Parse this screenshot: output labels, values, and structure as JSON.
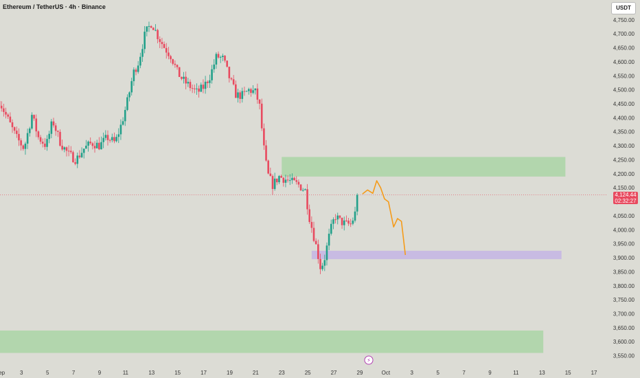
{
  "header": {
    "symbol_line": "Ethereum / TetherUS · 4h · Binance"
  },
  "currency_button": "USDT",
  "price_tag": {
    "price": "4,124.44",
    "countdown": "02:32:27"
  },
  "colors": {
    "up": "#22a08a",
    "down": "#e84a5f",
    "zone_green": "#a8d5a2",
    "zone_purple": "#c3b3e6",
    "projection": "#f59b1a",
    "axis_text": "#333333",
    "background": "#dcdcd5"
  },
  "chart_data": {
    "type": "candlestick",
    "ylim": [
      3525,
      4780
    ],
    "y_ticks": [
      3550,
      3600,
      3650,
      3700,
      3750,
      3800,
      3850,
      3900,
      3950,
      4000,
      4050,
      4100,
      4150,
      4200,
      4250,
      4300,
      4350,
      4400,
      4450,
      4500,
      4550,
      4600,
      4650,
      4700,
      4750
    ],
    "y_tick_labels": [
      "3,550.00",
      "3,600.00",
      "3,650.00",
      "3,700.00",
      "3,750.00",
      "3,800.00",
      "3,850.00",
      "3,900.00",
      "3,950.00",
      "4,000.00",
      "4,050.00",
      "4,100.00",
      "4,150.00",
      "4,200.00",
      "4,250.00",
      "4,300.00",
      "4,350.00",
      "4,400.00",
      "4,450.00",
      "4,500.00",
      "4,550.00",
      "4,600.00",
      "4,650.00",
      "4,700.00",
      "4,750.00"
    ],
    "x_range_days": [
      1.35,
      48.2
    ],
    "x_ticks": [
      {
        "day": 1.35,
        "label": "Sep"
      },
      {
        "day": 3,
        "label": "3"
      },
      {
        "day": 5,
        "label": "5"
      },
      {
        "day": 7,
        "label": "7"
      },
      {
        "day": 9,
        "label": "9"
      },
      {
        "day": 11,
        "label": "11"
      },
      {
        "day": 13,
        "label": "13"
      },
      {
        "day": 15,
        "label": "15"
      },
      {
        "day": 17,
        "label": "17"
      },
      {
        "day": 19,
        "label": "19"
      },
      {
        "day": 21,
        "label": "21"
      },
      {
        "day": 23,
        "label": "23"
      },
      {
        "day": 25,
        "label": "25"
      },
      {
        "day": 27,
        "label": "27"
      },
      {
        "day": 29,
        "label": "29"
      },
      {
        "day": 31,
        "label": "Oct"
      },
      {
        "day": 33,
        "label": "3"
      },
      {
        "day": 35,
        "label": "5"
      },
      {
        "day": 37,
        "label": "7"
      },
      {
        "day": 39,
        "label": "9"
      },
      {
        "day": 41,
        "label": "11"
      },
      {
        "day": 43,
        "label": "13"
      },
      {
        "day": 45,
        "label": "15"
      },
      {
        "day": 47,
        "label": "17"
      }
    ],
    "current_price": 4124.44,
    "close_path": [
      [
        1.3,
        4460
      ],
      [
        2.0,
        4390
      ],
      [
        2.6,
        4330
      ],
      [
        3.2,
        4290
      ],
      [
        3.8,
        4410
      ],
      [
        4.3,
        4330
      ],
      [
        4.9,
        4300
      ],
      [
        5.4,
        4390
      ],
      [
        6.0,
        4310
      ],
      [
        6.6,
        4270
      ],
      [
        7.2,
        4250
      ],
      [
        7.8,
        4290
      ],
      [
        8.4,
        4310
      ],
      [
        9.0,
        4300
      ],
      [
        9.6,
        4330
      ],
      [
        10.2,
        4310
      ],
      [
        10.7,
        4380
      ],
      [
        11.2,
        4470
      ],
      [
        11.6,
        4560
      ],
      [
        12.0,
        4600
      ],
      [
        12.5,
        4700
      ],
      [
        13.0,
        4740
      ],
      [
        13.5,
        4690
      ],
      [
        14.0,
        4650
      ],
      [
        14.5,
        4620
      ],
      [
        15.0,
        4560
      ],
      [
        15.5,
        4530
      ],
      [
        16.0,
        4510
      ],
      [
        16.5,
        4490
      ],
      [
        17.0,
        4510
      ],
      [
        17.5,
        4550
      ],
      [
        18.0,
        4620
      ],
      [
        18.5,
        4610
      ],
      [
        19.0,
        4540
      ],
      [
        19.5,
        4480
      ],
      [
        20.0,
        4480
      ],
      [
        20.5,
        4500
      ],
      [
        21.0,
        4490
      ],
      [
        21.3,
        4440
      ],
      [
        21.6,
        4300
      ],
      [
        21.9,
        4200
      ],
      [
        22.3,
        4160
      ],
      [
        22.8,
        4190
      ],
      [
        23.3,
        4180
      ],
      [
        23.8,
        4170
      ],
      [
        24.3,
        4160
      ],
      [
        24.8,
        4140
      ],
      [
        25.1,
        4050
      ],
      [
        25.4,
        3990
      ],
      [
        25.7,
        3930
      ],
      [
        26.0,
        3860
      ],
      [
        26.3,
        3900
      ],
      [
        26.7,
        3990
      ],
      [
        27.1,
        4050
      ],
      [
        27.5,
        4030
      ],
      [
        27.9,
        4020
      ],
      [
        28.3,
        4020
      ],
      [
        28.6,
        4050
      ],
      [
        28.9,
        4124
      ]
    ],
    "zones": [
      {
        "color": "green",
        "y_top": 4260,
        "y_bottom": 4190,
        "x_start_day": 23.0,
        "x_end_day": 44.8
      },
      {
        "color": "purple",
        "y_top": 3925,
        "y_bottom": 3895,
        "x_start_day": 25.3,
        "x_end_day": 44.5
      },
      {
        "color": "green",
        "y_top": 3640,
        "y_bottom": 3560,
        "x_start_day": 1.35,
        "x_end_day": 43.1
      }
    ],
    "projection": [
      [
        29.2,
        4128
      ],
      [
        29.6,
        4142
      ],
      [
        30.0,
        4130
      ],
      [
        30.3,
        4175
      ],
      [
        30.6,
        4150
      ],
      [
        30.9,
        4110
      ],
      [
        31.2,
        4100
      ],
      [
        31.6,
        4010
      ],
      [
        31.9,
        4040
      ],
      [
        32.2,
        4030
      ],
      [
        32.5,
        3910
      ]
    ]
  }
}
